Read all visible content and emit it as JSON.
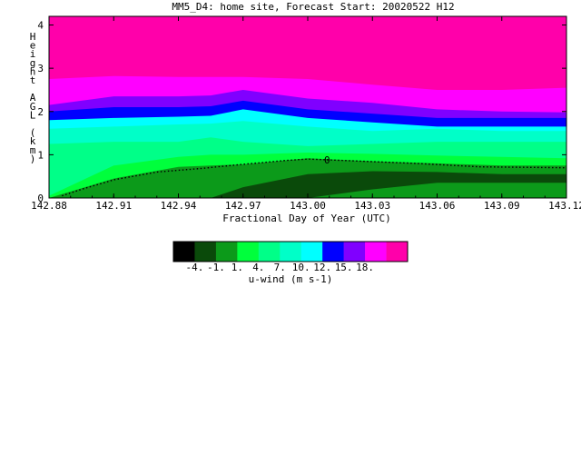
{
  "chart_data": {
    "type": "heatmap",
    "title": "MM5_D4: home site,  Forecast Start: 20020522 H12",
    "xlabel": "Fractional Day of Year (UTC)",
    "ylabel": "Height AGL (km)",
    "x_ticks": [
      "142.88",
      "142.91",
      "142.94",
      "142.97",
      "143.00",
      "143.03",
      "143.06",
      "143.09",
      "143.12"
    ],
    "y_ticks": [
      "0",
      "1",
      "2",
      "3",
      "4"
    ],
    "xlim": [
      142.88,
      143.12
    ],
    "ylim": [
      0,
      4.2
    ],
    "zero_contour_label": "0",
    "colorbar": {
      "label": "u-wind (m s-1)",
      "tick_labels": [
        "-4.",
        "-1.",
        "1.",
        "4.",
        "7.",
        "10.",
        "12.",
        "15.",
        "18."
      ],
      "colors": [
        "#000000",
        "#0a4a0a",
        "#0c9a1a",
        "#00ff3c",
        "#00ff88",
        "#00ffc8",
        "#00ffff",
        "#0000ff",
        "#8000ff",
        "#ff00ff",
        "#ff00aa"
      ]
    },
    "levels": [
      -4,
      -2.5,
      -1,
      1,
      2.5,
      4,
      5.5,
      7,
      10,
      12,
      15,
      18
    ],
    "x": [
      142.88,
      142.91,
      142.94,
      142.955,
      142.97,
      143.0,
      143.03,
      143.06,
      143.09,
      143.12
    ],
    "boundaries": [
      {
        "min": -4,
        "max": -2.5,
        "y": [
          0,
          0,
          0,
          0,
          0,
          0,
          0.2,
          0.35,
          0.35,
          0.35
        ]
      },
      {
        "min": -2.5,
        "max": -1,
        "y": [
          0,
          0,
          0,
          0,
          0.25,
          0.55,
          0.62,
          0.6,
          0.55,
          0.55
        ]
      },
      {
        "min": -1,
        "max": 1,
        "y": [
          0,
          0.45,
          0.72,
          0.75,
          0.78,
          0.92,
          0.85,
          0.8,
          0.75,
          0.75
        ]
      },
      {
        "min": 1,
        "max": 2.5,
        "y": [
          0.05,
          0.75,
          0.95,
          1.0,
          1.0,
          1.05,
          1.02,
          0.98,
          0.95,
          0.92
        ]
      },
      {
        "min": 2.5,
        "max": 4,
        "y": [
          1.25,
          1.3,
          1.3,
          1.4,
          1.3,
          1.2,
          1.25,
          1.3,
          1.3,
          1.3
        ]
      },
      {
        "min": 4,
        "max": 5.5,
        "y": [
          1.6,
          1.65,
          1.7,
          1.72,
          1.78,
          1.65,
          1.55,
          1.6,
          1.55,
          1.55
        ]
      },
      {
        "min": 5.5,
        "max": 7,
        "y": [
          1.8,
          1.85,
          1.88,
          1.9,
          2.05,
          1.85,
          1.75,
          1.65,
          1.65,
          1.65
        ]
      },
      {
        "min": 7,
        "max": 10,
        "y": [
          2.0,
          2.1,
          2.1,
          2.12,
          2.25,
          2.05,
          1.95,
          1.85,
          1.85,
          1.85
        ]
      },
      {
        "min": 10,
        "max": 12,
        "y": [
          2.15,
          2.35,
          2.35,
          2.37,
          2.5,
          2.3,
          2.2,
          2.05,
          2.0,
          1.98
        ]
      },
      {
        "min": 12,
        "max": 15,
        "y": [
          2.75,
          2.82,
          2.8,
          2.8,
          2.8,
          2.75,
          2.62,
          2.5,
          2.5,
          2.55
        ]
      },
      {
        "min": 15,
        "max": 18,
        "y": [
          3.25,
          3.25,
          3.25,
          3.25,
          3.25,
          3.25,
          3.3,
          3.35,
          3.35,
          3.35
        ]
      },
      {
        "min": 18,
        "max": 21,
        "y": [
          4.2,
          4.2,
          4.2,
          4.2,
          4.2,
          4.2,
          4.1,
          4.0,
          4.0,
          4.0
        ]
      }
    ],
    "zero_contour": {
      "x": [
        142.886,
        142.895,
        142.91,
        142.93,
        142.95,
        142.97,
        142.99,
        143.0,
        143.02,
        143.05,
        143.08,
        143.12
      ],
      "y": [
        0.05,
        0.2,
        0.42,
        0.6,
        0.68,
        0.78,
        0.87,
        0.9,
        0.86,
        0.8,
        0.72,
        0.7
      ]
    }
  }
}
